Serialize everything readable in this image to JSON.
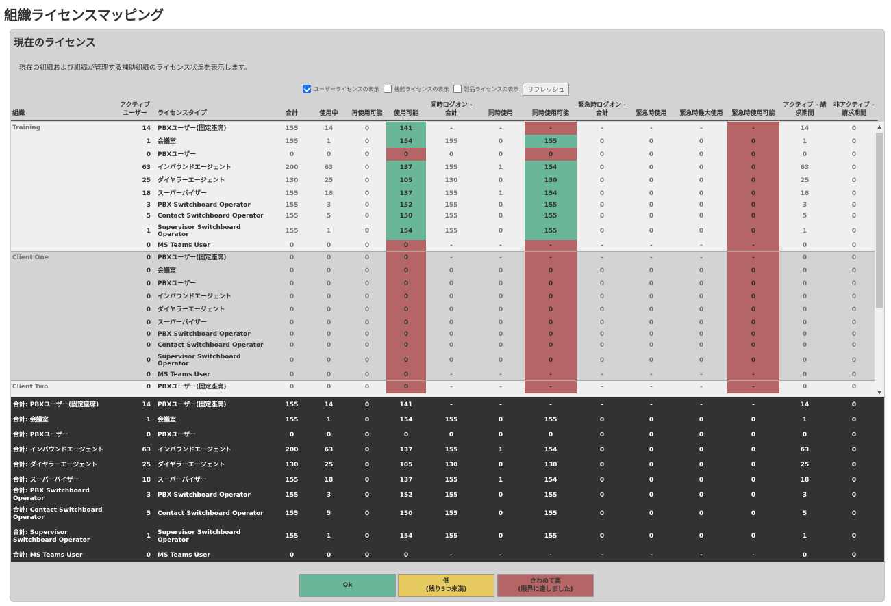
{
  "page_title": "組織ライセンスマッピング",
  "panel": {
    "title": "現在のライセンス",
    "description": "現在の組織および組織が管理する補助組織のライセンス状況を表示します。"
  },
  "controls": {
    "user_license": "ユーザーライセンスの表示",
    "user_license_checked": true,
    "feature_license": "機能ライセンスの表示",
    "feature_license_checked": false,
    "product_license": "製品ライセンスの表示",
    "product_license_checked": false,
    "refresh": "リフレッシュ"
  },
  "headers": [
    "組織",
    "アクティブ\nユーザー",
    "ライセンスタイプ",
    "合計",
    "使用中",
    "再使用可能",
    "使用可能",
    "同時ログオン - 合計",
    "同時使用",
    "同時使用可能",
    "緊急時ログオン - 合計",
    "緊急時使用",
    "緊急時最大使用",
    "緊急時使用可能",
    "アクティブ - 請求期間",
    "非アクティブ - 請求期間"
  ],
  "colors": {
    "ok": "#69b798",
    "low": "#e7ca5f",
    "critical": "#b56565",
    "footer_bg": "#323232"
  },
  "groups": [
    {
      "org": "Training",
      "style": "light",
      "rows": [
        {
          "active": "14",
          "type": "PBXユーザー(固定座席)",
          "total": "155",
          "in_use": "14",
          "reusable": "0",
          "available": "141",
          "cl_total": "-",
          "conc": "-",
          "cl_avail": "-",
          "em_total": "-",
          "em_use": "-",
          "em_max": "-",
          "em_avail": "-",
          "act": "14",
          "inact": "0",
          "h": 19,
          "s_avail": "ok",
          "s_cl": "crit",
          "s_em": "crit"
        },
        {
          "active": "1",
          "type": "会議室",
          "total": "155",
          "in_use": "1",
          "reusable": "0",
          "available": "154",
          "cl_total": "155",
          "conc": "0",
          "cl_avail": "155",
          "em_total": "0",
          "em_use": "0",
          "em_max": "0",
          "em_avail": "0",
          "act": "1",
          "inact": "0",
          "h": 19,
          "s_avail": "ok",
          "s_cl": "ok",
          "s_em": "crit"
        },
        {
          "active": "0",
          "type": "PBXユーザー",
          "total": "0",
          "in_use": "0",
          "reusable": "0",
          "available": "0",
          "cl_total": "0",
          "conc": "0",
          "cl_avail": "0",
          "em_total": "0",
          "em_use": "0",
          "em_max": "0",
          "em_avail": "0",
          "act": "0",
          "inact": "0",
          "h": 19,
          "s_avail": "crit",
          "s_cl": "crit",
          "s_em": "crit"
        },
        {
          "active": "63",
          "type": "インバウンドエージェント",
          "total": "200",
          "in_use": "63",
          "reusable": "0",
          "available": "137",
          "cl_total": "155",
          "conc": "1",
          "cl_avail": "154",
          "em_total": "0",
          "em_use": "0",
          "em_max": "0",
          "em_avail": "0",
          "act": "63",
          "inact": "0",
          "h": 19,
          "s_avail": "ok",
          "s_cl": "ok",
          "s_em": "crit"
        },
        {
          "active": "25",
          "type": "ダイヤラーエージェント",
          "total": "130",
          "in_use": "25",
          "reusable": "0",
          "available": "105",
          "cl_total": "130",
          "conc": "0",
          "cl_avail": "130",
          "em_total": "0",
          "em_use": "0",
          "em_max": "0",
          "em_avail": "0",
          "act": "25",
          "inact": "0",
          "h": 19,
          "s_avail": "ok",
          "s_cl": "ok",
          "s_em": "crit"
        },
        {
          "active": "18",
          "type": "スーパーバイザー",
          "total": "155",
          "in_use": "18",
          "reusable": "0",
          "available": "137",
          "cl_total": "155",
          "conc": "1",
          "cl_avail": "154",
          "em_total": "0",
          "em_use": "0",
          "em_max": "0",
          "em_avail": "0",
          "act": "18",
          "inact": "0",
          "h": 19,
          "s_avail": "ok",
          "s_cl": "ok",
          "s_em": "crit"
        },
        {
          "active": "3",
          "type": "PBX Switchboard Operator",
          "total": "155",
          "in_use": "3",
          "reusable": "0",
          "available": "152",
          "cl_total": "155",
          "conc": "0",
          "cl_avail": "155",
          "em_total": "0",
          "em_use": "0",
          "em_max": "0",
          "em_avail": "0",
          "act": "3",
          "inact": "0",
          "h": 16,
          "s_avail": "ok",
          "s_cl": "ok",
          "s_em": "crit"
        },
        {
          "active": "5",
          "type": "Contact Switchboard Operator",
          "total": "155",
          "in_use": "5",
          "reusable": "0",
          "available": "150",
          "cl_total": "155",
          "conc": "0",
          "cl_avail": "155",
          "em_total": "0",
          "em_use": "0",
          "em_max": "0",
          "em_avail": "0",
          "act": "5",
          "inact": "0",
          "h": 16,
          "s_avail": "ok",
          "s_cl": "ok",
          "s_em": "crit"
        },
        {
          "active": "1",
          "type": "Supervisor Switchboard Operator",
          "total": "155",
          "in_use": "1",
          "reusable": "0",
          "available": "154",
          "cl_total": "155",
          "conc": "0",
          "cl_avail": "155",
          "em_total": "0",
          "em_use": "0",
          "em_max": "0",
          "em_avail": "0",
          "act": "1",
          "inact": "0",
          "h": 27,
          "s_avail": "ok",
          "s_cl": "ok",
          "s_em": "crit"
        },
        {
          "active": "0",
          "type": "MS Teams User",
          "total": "0",
          "in_use": "0",
          "reusable": "0",
          "available": "0",
          "cl_total": "-",
          "conc": "-",
          "cl_avail": "-",
          "em_total": "-",
          "em_use": "-",
          "em_max": "-",
          "em_avail": "-",
          "act": "0",
          "inact": "0",
          "h": 16,
          "s_avail": "crit",
          "s_cl": "crit",
          "s_em": "crit"
        }
      ]
    },
    {
      "org": "Client One",
      "style": "grey",
      "rows": [
        {
          "active": "0",
          "type": "PBXユーザー(固定座席)",
          "total": "0",
          "in_use": "0",
          "reusable": "0",
          "available": "0",
          "cl_total": "-",
          "conc": "-",
          "cl_avail": "-",
          "em_total": "-",
          "em_use": "-",
          "em_max": "-",
          "em_avail": "-",
          "act": "0",
          "inact": "0",
          "h": 19,
          "s_avail": "crit",
          "s_cl": "crit",
          "s_em": "crit"
        },
        {
          "active": "0",
          "type": "会議室",
          "total": "0",
          "in_use": "0",
          "reusable": "0",
          "available": "0",
          "cl_total": "0",
          "conc": "0",
          "cl_avail": "0",
          "em_total": "0",
          "em_use": "0",
          "em_max": "0",
          "em_avail": "0",
          "act": "0",
          "inact": "0",
          "h": 19,
          "s_avail": "crit",
          "s_cl": "crit",
          "s_em": "crit"
        },
        {
          "active": "0",
          "type": "PBXユーザー",
          "total": "0",
          "in_use": "0",
          "reusable": "0",
          "available": "0",
          "cl_total": "0",
          "conc": "0",
          "cl_avail": "0",
          "em_total": "0",
          "em_use": "0",
          "em_max": "0",
          "em_avail": "0",
          "act": "0",
          "inact": "0",
          "h": 19,
          "s_avail": "crit",
          "s_cl": "crit",
          "s_em": "crit"
        },
        {
          "active": "0",
          "type": "インバウンドエージェント",
          "total": "0",
          "in_use": "0",
          "reusable": "0",
          "available": "0",
          "cl_total": "0",
          "conc": "0",
          "cl_avail": "0",
          "em_total": "0",
          "em_use": "0",
          "em_max": "0",
          "em_avail": "0",
          "act": "0",
          "inact": "0",
          "h": 19,
          "s_avail": "crit",
          "s_cl": "crit",
          "s_em": "crit"
        },
        {
          "active": "0",
          "type": "ダイヤラーエージェント",
          "total": "0",
          "in_use": "0",
          "reusable": "0",
          "available": "0",
          "cl_total": "0",
          "conc": "0",
          "cl_avail": "0",
          "em_total": "0",
          "em_use": "0",
          "em_max": "0",
          "em_avail": "0",
          "act": "0",
          "inact": "0",
          "h": 19,
          "s_avail": "crit",
          "s_cl": "crit",
          "s_em": "crit"
        },
        {
          "active": "0",
          "type": "スーパーバイザー",
          "total": "0",
          "in_use": "0",
          "reusable": "0",
          "available": "0",
          "cl_total": "0",
          "conc": "0",
          "cl_avail": "0",
          "em_total": "0",
          "em_use": "0",
          "em_max": "0",
          "em_avail": "0",
          "act": "0",
          "inact": "0",
          "h": 19,
          "s_avail": "crit",
          "s_cl": "crit",
          "s_em": "crit"
        },
        {
          "active": "0",
          "type": "PBX Switchboard Operator",
          "total": "0",
          "in_use": "0",
          "reusable": "0",
          "available": "0",
          "cl_total": "0",
          "conc": "0",
          "cl_avail": "0",
          "em_total": "0",
          "em_use": "0",
          "em_max": "0",
          "em_avail": "0",
          "act": "0",
          "inact": "0",
          "h": 16,
          "s_avail": "crit",
          "s_cl": "crit",
          "s_em": "crit"
        },
        {
          "active": "0",
          "type": "Contact Switchboard Operator",
          "total": "0",
          "in_use": "0",
          "reusable": "0",
          "available": "0",
          "cl_total": "0",
          "conc": "0",
          "cl_avail": "0",
          "em_total": "0",
          "em_use": "0",
          "em_max": "0",
          "em_avail": "0",
          "act": "0",
          "inact": "0",
          "h": 16,
          "s_avail": "crit",
          "s_cl": "crit",
          "s_em": "crit"
        },
        {
          "active": "0",
          "type": "Supervisor Switchboard Operator",
          "total": "0",
          "in_use": "0",
          "reusable": "0",
          "available": "0",
          "cl_total": "0",
          "conc": "0",
          "cl_avail": "0",
          "em_total": "0",
          "em_use": "0",
          "em_max": "0",
          "em_avail": "0",
          "act": "0",
          "inact": "0",
          "h": 27,
          "s_avail": "crit",
          "s_cl": "crit",
          "s_em": "crit"
        },
        {
          "active": "0",
          "type": "MS Teams User",
          "total": "0",
          "in_use": "0",
          "reusable": "0",
          "available": "0",
          "cl_total": "-",
          "conc": "-",
          "cl_avail": "-",
          "em_total": "-",
          "em_use": "-",
          "em_max": "-",
          "em_avail": "-",
          "act": "0",
          "inact": "0",
          "h": 16,
          "s_avail": "crit",
          "s_cl": "crit",
          "s_em": "crit"
        }
      ]
    },
    {
      "org": "Client Two",
      "style": "light",
      "rows": [
        {
          "active": "0",
          "type": "PBXユーザー(固定座席)",
          "total": "0",
          "in_use": "0",
          "reusable": "0",
          "available": "0",
          "cl_total": "-",
          "conc": "-",
          "cl_avail": "-",
          "em_total": "-",
          "em_use": "-",
          "em_max": "-",
          "em_avail": "-",
          "act": "0",
          "inact": "0",
          "h": 19,
          "s_avail": "crit",
          "s_cl": "crit",
          "s_em": "crit"
        }
      ]
    }
  ],
  "totals": [
    {
      "label": "合計: PBXユーザー(固定座席)",
      "active": "14",
      "type": "PBXユーザー(固定座席)",
      "total": "155",
      "in_use": "14",
      "reusable": "0",
      "available": "141",
      "cl_total": "-",
      "conc": "-",
      "cl_avail": "-",
      "em_total": "-",
      "em_use": "-",
      "em_max": "-",
      "em_avail": "-",
      "act": "14",
      "inact": "0",
      "h": 22
    },
    {
      "label": "合計: 会議室",
      "active": "1",
      "type": "会議室",
      "total": "155",
      "in_use": "1",
      "reusable": "0",
      "available": "154",
      "cl_total": "155",
      "conc": "0",
      "cl_avail": "155",
      "em_total": "0",
      "em_use": "0",
      "em_max": "0",
      "em_avail": "0",
      "act": "1",
      "inact": "0",
      "h": 22
    },
    {
      "label": "合計: PBXユーザー",
      "active": "0",
      "type": "PBXユーザー",
      "total": "0",
      "in_use": "0",
      "reusable": "0",
      "available": "0",
      "cl_total": "0",
      "conc": "0",
      "cl_avail": "0",
      "em_total": "0",
      "em_use": "0",
      "em_max": "0",
      "em_avail": "0",
      "act": "0",
      "inact": "0",
      "h": 22
    },
    {
      "label": "合計: インバウンドエージェント",
      "active": "63",
      "type": "インバウンドエージェント",
      "total": "200",
      "in_use": "63",
      "reusable": "0",
      "available": "137",
      "cl_total": "155",
      "conc": "1",
      "cl_avail": "154",
      "em_total": "0",
      "em_use": "0",
      "em_max": "0",
      "em_avail": "0",
      "act": "63",
      "inact": "0",
      "h": 22
    },
    {
      "label": "合計: ダイヤラーエージェント",
      "active": "25",
      "type": "ダイヤラーエージェント",
      "total": "130",
      "in_use": "25",
      "reusable": "0",
      "available": "105",
      "cl_total": "130",
      "conc": "0",
      "cl_avail": "130",
      "em_total": "0",
      "em_use": "0",
      "em_max": "0",
      "em_avail": "0",
      "act": "25",
      "inact": "0",
      "h": 22
    },
    {
      "label": "合計: スーパーバイザー",
      "active": "18",
      "type": "スーパーバイザー",
      "total": "155",
      "in_use": "18",
      "reusable": "0",
      "available": "137",
      "cl_total": "155",
      "conc": "1",
      "cl_avail": "154",
      "em_total": "0",
      "em_use": "0",
      "em_max": "0",
      "em_avail": "0",
      "act": "18",
      "inact": "0",
      "h": 22
    },
    {
      "label": "合計: PBX Switchboard Operator",
      "active": "3",
      "type": "PBX Switchboard Operator",
      "total": "155",
      "in_use": "3",
      "reusable": "0",
      "available": "152",
      "cl_total": "155",
      "conc": "0",
      "cl_avail": "155",
      "em_total": "0",
      "em_use": "0",
      "em_max": "0",
      "em_avail": "0",
      "act": "3",
      "inact": "0",
      "h": 22
    },
    {
      "label": "合計: Contact Switchboard Operator",
      "active": "5",
      "type": "Contact Switchboard Operator",
      "total": "155",
      "in_use": "5",
      "reusable": "0",
      "available": "150",
      "cl_total": "155",
      "conc": "0",
      "cl_avail": "155",
      "em_total": "0",
      "em_use": "0",
      "em_max": "0",
      "em_avail": "0",
      "act": "5",
      "inact": "0",
      "h": 33
    },
    {
      "label": "合計: Supervisor Switchboard Operator",
      "active": "1",
      "type": "Supervisor Switchboard Operator",
      "total": "155",
      "in_use": "1",
      "reusable": "0",
      "available": "154",
      "cl_total": "155",
      "conc": "0",
      "cl_avail": "155",
      "em_total": "0",
      "em_use": "0",
      "em_max": "0",
      "em_avail": "0",
      "act": "1",
      "inact": "0",
      "h": 33
    },
    {
      "label": "合計: MS Teams User",
      "active": "0",
      "type": "MS Teams User",
      "total": "0",
      "in_use": "0",
      "reusable": "0",
      "available": "0",
      "cl_total": "-",
      "conc": "-",
      "cl_avail": "-",
      "em_total": "-",
      "em_use": "-",
      "em_max": "-",
      "em_avail": "-",
      "act": "0",
      "inact": "0",
      "h": 22
    }
  ],
  "legend": {
    "ok": "Ok",
    "low_title": "低",
    "low_sub": "(残り5つ未満)",
    "crit_title": "きわめて高",
    "crit_sub": "(限界に達しました)"
  }
}
